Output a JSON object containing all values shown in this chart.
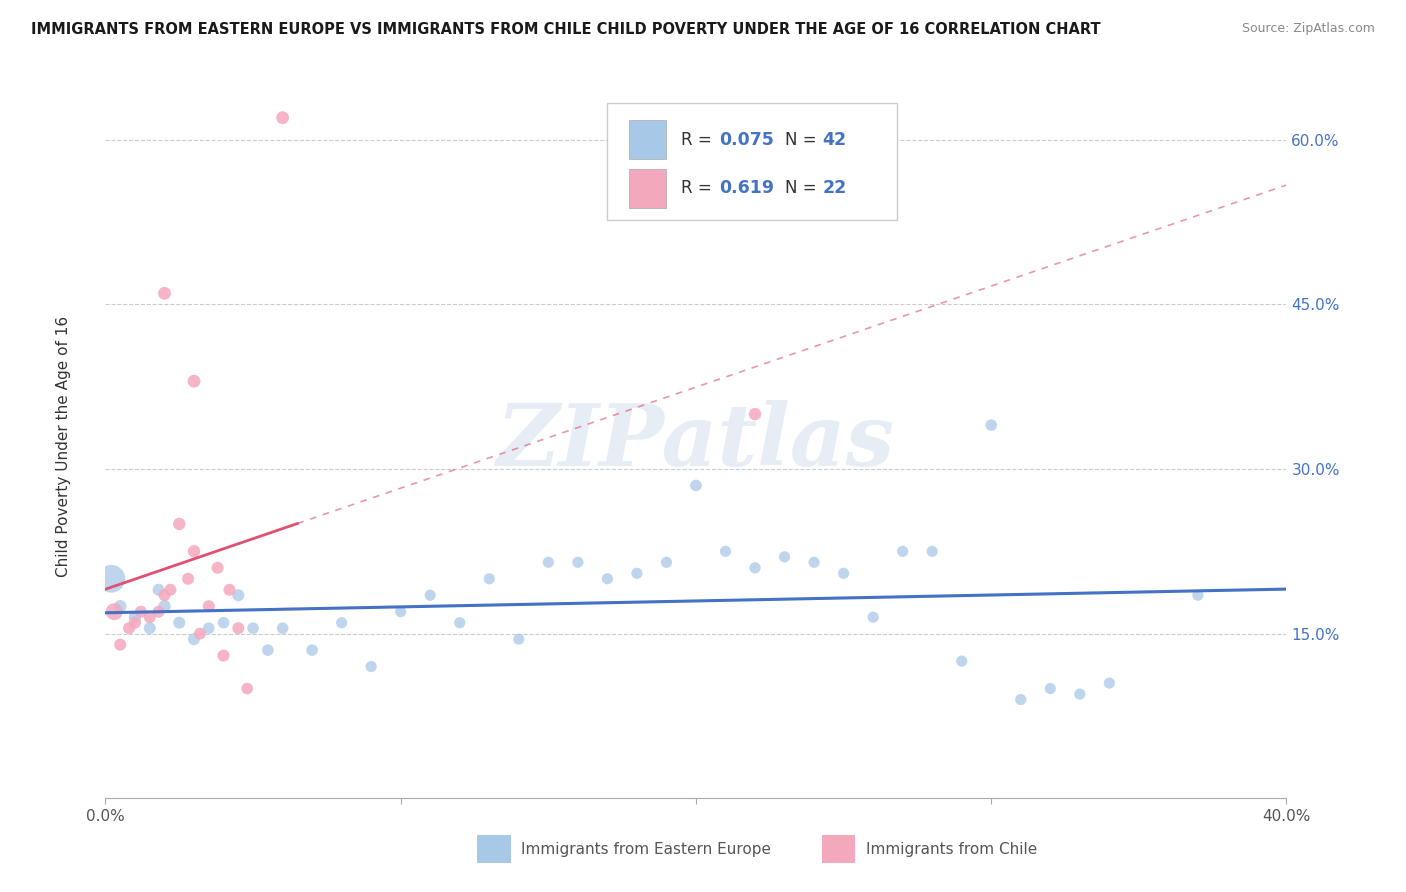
{
  "title": "IMMIGRANTS FROM EASTERN EUROPE VS IMMIGRANTS FROM CHILE CHILD POVERTY UNDER THE AGE OF 16 CORRELATION CHART",
  "source": "Source: ZipAtlas.com",
  "ylabel": "Child Poverty Under the Age of 16",
  "xlim": [
    0.0,
    0.4
  ],
  "ylim": [
    0.0,
    0.65
  ],
  "blue_color": "#a8c8e8",
  "pink_color": "#f4a8bc",
  "blue_line_color": "#4472c4",
  "pink_line_color": "#e05070",
  "watermark": "ZIPatlas",
  "legend_labels": [
    "Immigrants from Eastern Europe",
    "Immigrants from Chile"
  ],
  "blue_r_label": "0.075",
  "blue_n_label": "42",
  "pink_r_label": "0.619",
  "pink_n_label": "22",
  "blue_scatter_x": [
    0.005,
    0.01,
    0.015,
    0.018,
    0.02,
    0.025,
    0.03,
    0.035,
    0.04,
    0.045,
    0.05,
    0.055,
    0.06,
    0.07,
    0.08,
    0.09,
    0.1,
    0.11,
    0.12,
    0.13,
    0.14,
    0.15,
    0.16,
    0.17,
    0.18,
    0.19,
    0.2,
    0.21,
    0.22,
    0.23,
    0.24,
    0.25,
    0.26,
    0.27,
    0.28,
    0.29,
    0.3,
    0.31,
    0.32,
    0.33,
    0.34,
    0.37
  ],
  "blue_scatter_y": [
    0.175,
    0.165,
    0.155,
    0.19,
    0.175,
    0.16,
    0.145,
    0.155,
    0.16,
    0.185,
    0.155,
    0.135,
    0.155,
    0.135,
    0.16,
    0.12,
    0.17,
    0.185,
    0.16,
    0.2,
    0.145,
    0.215,
    0.215,
    0.2,
    0.205,
    0.215,
    0.285,
    0.225,
    0.21,
    0.22,
    0.215,
    0.205,
    0.165,
    0.225,
    0.225,
    0.125,
    0.34,
    0.09,
    0.1,
    0.095,
    0.105,
    0.185
  ],
  "blue_scatter_sizes": [
    80,
    80,
    75,
    75,
    80,
    75,
    75,
    70,
    70,
    75,
    70,
    70,
    70,
    70,
    65,
    65,
    65,
    65,
    65,
    65,
    65,
    65,
    65,
    65,
    65,
    65,
    70,
    65,
    65,
    65,
    65,
    65,
    65,
    65,
    65,
    65,
    70,
    65,
    65,
    65,
    65,
    65
  ],
  "blue_large_x": [
    0.002
  ],
  "blue_large_y": [
    0.2
  ],
  "blue_large_s": [
    400
  ],
  "pink_scatter_x": [
    0.005,
    0.008,
    0.01,
    0.012,
    0.015,
    0.018,
    0.02,
    0.022,
    0.025,
    0.028,
    0.03,
    0.032,
    0.035,
    0.038,
    0.04,
    0.042,
    0.045,
    0.048,
    0.02,
    0.03,
    0.06,
    0.22
  ],
  "pink_scatter_y": [
    0.14,
    0.155,
    0.16,
    0.17,
    0.165,
    0.17,
    0.185,
    0.19,
    0.25,
    0.2,
    0.225,
    0.15,
    0.175,
    0.21,
    0.13,
    0.19,
    0.155,
    0.1,
    0.46,
    0.38,
    0.62,
    0.35
  ],
  "pink_scatter_sizes": [
    75,
    75,
    75,
    75,
    75,
    75,
    75,
    75,
    80,
    75,
    80,
    75,
    75,
    75,
    75,
    75,
    75,
    70,
    85,
    85,
    85,
    80
  ],
  "pink_large_x": [
    0.003
  ],
  "pink_large_y": [
    0.17
  ],
  "pink_large_s": [
    150
  ]
}
